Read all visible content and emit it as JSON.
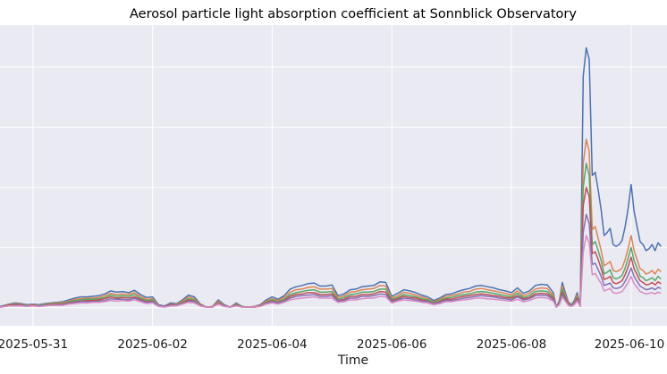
{
  "chart_data": {
    "type": "line",
    "title": "Aerosol particle light absorption coefficient at Sonnblick Observatory",
    "xlabel": "Time",
    "ylabel": "",
    "x_ticks": [
      "2025-05-31",
      "2025-06-02",
      "2025-06-04",
      "2025-06-06",
      "2025-06-08",
      "2025-06-10"
    ],
    "xlim_days": [
      -0.55,
      10.6
    ],
    "ylim": [
      -0.3,
      4.7
    ],
    "y_gridlines": [
      0,
      1,
      2,
      3,
      4
    ],
    "grid": true,
    "background": "#eaeaf2",
    "x_time": [
      -0.55,
      -0.4,
      -0.3,
      -0.2,
      -0.1,
      0,
      0.1,
      0.2,
      0.3,
      0.4,
      0.5,
      0.6,
      0.7,
      0.8,
      0.9,
      1,
      1.1,
      1.2,
      1.3,
      1.4,
      1.5,
      1.6,
      1.7,
      1.8,
      1.9,
      2,
      2.1,
      2.2,
      2.3,
      2.4,
      2.5,
      2.6,
      2.7,
      2.8,
      2.9,
      3,
      3.1,
      3.2,
      3.3,
      3.4,
      3.5,
      3.6,
      3.7,
      3.8,
      3.9,
      4,
      4.1,
      4.2,
      4.3,
      4.4,
      4.5,
      4.6,
      4.7,
      4.8,
      4.9,
      5,
      5.1,
      5.2,
      5.3,
      5.4,
      5.5,
      5.6,
      5.7,
      5.8,
      5.9,
      6,
      6.1,
      6.2,
      6.3,
      6.4,
      6.5,
      6.6,
      6.7,
      6.8,
      6.9,
      7,
      7.1,
      7.2,
      7.3,
      7.4,
      7.5,
      7.6,
      7.7,
      7.8,
      7.9,
      8,
      8.1,
      8.2,
      8.3,
      8.4,
      8.5,
      8.6,
      8.7,
      8.75,
      8.8,
      8.85,
      8.9,
      8.95,
      9,
      9.05,
      9.1,
      9.15,
      9.2,
      9.25,
      9.3,
      9.35,
      9.4,
      9.45,
      9.5,
      9.55,
      9.6,
      9.65,
      9.7,
      9.75,
      9.8,
      9.85,
      9.9,
      9.95,
      10,
      10.05,
      10.1,
      10.15,
      10.2,
      10.25,
      10.3,
      10.35,
      10.4,
      10.45,
      10.5,
      10.55,
      10.6
    ],
    "series": [
      {
        "color": "#4c72b0",
        "values": [
          0.02,
          0.06,
          0.08,
          0.07,
          0.05,
          0.06,
          0.05,
          0.07,
          0.08,
          0.09,
          0.1,
          0.13,
          0.16,
          0.18,
          0.18,
          0.19,
          0.2,
          0.23,
          0.28,
          0.26,
          0.27,
          0.25,
          0.29,
          0.22,
          0.17,
          0.18,
          0.05,
          0.03,
          0.08,
          0.07,
          0.13,
          0.21,
          0.18,
          0.06,
          0.01,
          0.02,
          0.13,
          0.05,
          0.01,
          0.08,
          0.02,
          0.01,
          0.02,
          0.05,
          0.13,
          0.18,
          0.14,
          0.2,
          0.31,
          0.35,
          0.37,
          0.4,
          0.41,
          0.36,
          0.36,
          0.38,
          0.2,
          0.23,
          0.3,
          0.31,
          0.35,
          0.36,
          0.37,
          0.43,
          0.42,
          0.19,
          0.24,
          0.3,
          0.28,
          0.25,
          0.21,
          0.18,
          0.12,
          0.16,
          0.22,
          0.23,
          0.27,
          0.3,
          0.32,
          0.36,
          0.37,
          0.35,
          0.33,
          0.3,
          0.28,
          0.25,
          0.33,
          0.24,
          0.28,
          0.37,
          0.39,
          0.38,
          0.25,
          0.01,
          0.12,
          0.42,
          0.25,
          0.1,
          0.05,
          0.12,
          0.25,
          0.05,
          3.85,
          4.32,
          4.13,
          2.2,
          2.25,
          1.95,
          1.62,
          1.2,
          1.25,
          1.32,
          1.05,
          1.02,
          1.05,
          1.12,
          1.35,
          1.65,
          2.05,
          1.6,
          1.35,
          1.1,
          1.05,
          0.95,
          0.98,
          1.05,
          0.95,
          1.08,
          1.02
        ]
      },
      {
        "color": "#dd8452",
        "values": [
          0.01,
          0.05,
          0.07,
          0.06,
          0.04,
          0.05,
          0.04,
          0.06,
          0.07,
          0.08,
          0.09,
          0.11,
          0.14,
          0.15,
          0.16,
          0.16,
          0.17,
          0.2,
          0.24,
          0.22,
          0.23,
          0.22,
          0.25,
          0.19,
          0.14,
          0.15,
          0.04,
          0.02,
          0.06,
          0.06,
          0.11,
          0.18,
          0.15,
          0.05,
          0.01,
          0.02,
          0.11,
          0.04,
          0.01,
          0.07,
          0.02,
          0.01,
          0.02,
          0.04,
          0.11,
          0.15,
          0.12,
          0.17,
          0.26,
          0.3,
          0.31,
          0.34,
          0.35,
          0.31,
          0.31,
          0.32,
          0.17,
          0.2,
          0.26,
          0.27,
          0.3,
          0.31,
          0.32,
          0.37,
          0.36,
          0.16,
          0.2,
          0.26,
          0.24,
          0.21,
          0.18,
          0.15,
          0.1,
          0.14,
          0.19,
          0.2,
          0.23,
          0.26,
          0.27,
          0.31,
          0.32,
          0.3,
          0.28,
          0.26,
          0.24,
          0.21,
          0.28,
          0.2,
          0.24,
          0.31,
          0.33,
          0.32,
          0.21,
          0.01,
          0.1,
          0.36,
          0.21,
          0.09,
          0.04,
          0.1,
          0.21,
          0.04,
          2.4,
          2.8,
          2.6,
          1.3,
          1.35,
          1.15,
          0.95,
          0.7,
          0.73,
          0.77,
          0.62,
          0.6,
          0.62,
          0.66,
          0.8,
          0.98,
          1.2,
          0.95,
          0.8,
          0.65,
          0.62,
          0.56,
          0.58,
          0.62,
          0.56,
          0.64,
          0.6
        ]
      },
      {
        "color": "#55a868",
        "values": [
          0.01,
          0.04,
          0.06,
          0.05,
          0.04,
          0.04,
          0.04,
          0.05,
          0.06,
          0.07,
          0.07,
          0.1,
          0.12,
          0.13,
          0.14,
          0.14,
          0.15,
          0.17,
          0.21,
          0.19,
          0.2,
          0.19,
          0.22,
          0.16,
          0.12,
          0.13,
          0.03,
          0.02,
          0.05,
          0.05,
          0.09,
          0.15,
          0.13,
          0.04,
          0.01,
          0.01,
          0.09,
          0.03,
          0.01,
          0.06,
          0.02,
          0.01,
          0.01,
          0.03,
          0.09,
          0.13,
          0.1,
          0.14,
          0.22,
          0.25,
          0.27,
          0.29,
          0.3,
          0.26,
          0.26,
          0.27,
          0.14,
          0.17,
          0.22,
          0.23,
          0.26,
          0.26,
          0.27,
          0.31,
          0.31,
          0.14,
          0.17,
          0.22,
          0.2,
          0.18,
          0.15,
          0.13,
          0.09,
          0.12,
          0.16,
          0.17,
          0.2,
          0.22,
          0.23,
          0.26,
          0.27,
          0.26,
          0.24,
          0.22,
          0.2,
          0.18,
          0.24,
          0.17,
          0.2,
          0.27,
          0.28,
          0.27,
          0.18,
          0.01,
          0.09,
          0.31,
          0.18,
          0.07,
          0.04,
          0.09,
          0.18,
          0.04,
          2.0,
          2.4,
          2.2,
          1.05,
          1.1,
          0.95,
          0.78,
          0.56,
          0.59,
          0.63,
          0.5,
          0.48,
          0.5,
          0.54,
          0.66,
          0.82,
          1.0,
          0.78,
          0.66,
          0.53,
          0.5,
          0.45,
          0.47,
          0.5,
          0.45,
          0.52,
          0.48
        ]
      },
      {
        "color": "#c44e52",
        "values": [
          0.01,
          0.04,
          0.05,
          0.05,
          0.03,
          0.04,
          0.03,
          0.04,
          0.05,
          0.06,
          0.06,
          0.08,
          0.1,
          0.11,
          0.12,
          0.12,
          0.13,
          0.15,
          0.18,
          0.16,
          0.17,
          0.16,
          0.18,
          0.14,
          0.1,
          0.11,
          0.03,
          0.02,
          0.05,
          0.04,
          0.08,
          0.13,
          0.11,
          0.04,
          0.01,
          0.01,
          0.08,
          0.03,
          0.01,
          0.05,
          0.01,
          0.01,
          0.01,
          0.03,
          0.08,
          0.11,
          0.09,
          0.12,
          0.19,
          0.22,
          0.23,
          0.25,
          0.25,
          0.22,
          0.22,
          0.23,
          0.12,
          0.14,
          0.19,
          0.19,
          0.22,
          0.22,
          0.23,
          0.27,
          0.26,
          0.12,
          0.15,
          0.19,
          0.17,
          0.16,
          0.13,
          0.11,
          0.07,
          0.1,
          0.14,
          0.14,
          0.17,
          0.19,
          0.2,
          0.22,
          0.23,
          0.22,
          0.2,
          0.19,
          0.17,
          0.16,
          0.2,
          0.15,
          0.17,
          0.23,
          0.24,
          0.23,
          0.16,
          0.01,
          0.07,
          0.26,
          0.16,
          0.06,
          0.03,
          0.07,
          0.16,
          0.03,
          1.7,
          2.0,
          1.85,
          0.9,
          0.93,
          0.8,
          0.65,
          0.47,
          0.49,
          0.52,
          0.42,
          0.4,
          0.42,
          0.45,
          0.55,
          0.68,
          0.84,
          0.65,
          0.55,
          0.45,
          0.42,
          0.38,
          0.39,
          0.42,
          0.38,
          0.43,
          0.4
        ]
      },
      {
        "color": "#8172b3",
        "values": [
          0.01,
          0.03,
          0.04,
          0.04,
          0.03,
          0.03,
          0.03,
          0.04,
          0.04,
          0.05,
          0.05,
          0.07,
          0.09,
          0.1,
          0.1,
          0.1,
          0.11,
          0.12,
          0.15,
          0.14,
          0.14,
          0.13,
          0.16,
          0.12,
          0.09,
          0.1,
          0.03,
          0.02,
          0.04,
          0.04,
          0.07,
          0.11,
          0.1,
          0.03,
          0.01,
          0.01,
          0.07,
          0.03,
          0.01,
          0.04,
          0.01,
          0.01,
          0.01,
          0.03,
          0.07,
          0.1,
          0.08,
          0.11,
          0.16,
          0.19,
          0.2,
          0.21,
          0.22,
          0.19,
          0.19,
          0.2,
          0.11,
          0.12,
          0.16,
          0.16,
          0.19,
          0.19,
          0.2,
          0.23,
          0.22,
          0.1,
          0.13,
          0.16,
          0.15,
          0.13,
          0.11,
          0.1,
          0.06,
          0.09,
          0.12,
          0.12,
          0.14,
          0.16,
          0.17,
          0.19,
          0.2,
          0.19,
          0.18,
          0.16,
          0.15,
          0.13,
          0.18,
          0.13,
          0.15,
          0.2,
          0.21,
          0.2,
          0.13,
          0.01,
          0.06,
          0.22,
          0.13,
          0.05,
          0.03,
          0.06,
          0.13,
          0.03,
          1.25,
          1.55,
          1.4,
          0.72,
          0.74,
          0.63,
          0.52,
          0.37,
          0.39,
          0.41,
          0.33,
          0.32,
          0.33,
          0.36,
          0.44,
          0.54,
          0.66,
          0.52,
          0.44,
          0.36,
          0.33,
          0.3,
          0.31,
          0.33,
          0.3,
          0.34,
          0.32
        ]
      },
      {
        "color": "#da8bc3",
        "values": [
          0.01,
          0.03,
          0.03,
          0.03,
          0.02,
          0.03,
          0.02,
          0.03,
          0.04,
          0.04,
          0.04,
          0.06,
          0.07,
          0.08,
          0.08,
          0.09,
          0.09,
          0.1,
          0.12,
          0.11,
          0.12,
          0.11,
          0.13,
          0.1,
          0.07,
          0.08,
          0.02,
          0.01,
          0.03,
          0.03,
          0.06,
          0.09,
          0.08,
          0.03,
          0.01,
          0.01,
          0.06,
          0.02,
          0.01,
          0.03,
          0.01,
          0.01,
          0.01,
          0.02,
          0.06,
          0.08,
          0.06,
          0.09,
          0.13,
          0.15,
          0.16,
          0.17,
          0.18,
          0.16,
          0.16,
          0.16,
          0.09,
          0.1,
          0.13,
          0.13,
          0.15,
          0.16,
          0.16,
          0.19,
          0.18,
          0.08,
          0.11,
          0.13,
          0.12,
          0.11,
          0.09,
          0.08,
          0.05,
          0.07,
          0.1,
          0.1,
          0.12,
          0.13,
          0.14,
          0.16,
          0.16,
          0.15,
          0.14,
          0.13,
          0.12,
          0.11,
          0.14,
          0.1,
          0.12,
          0.16,
          0.17,
          0.16,
          0.11,
          0.01,
          0.05,
          0.18,
          0.11,
          0.04,
          0.02,
          0.05,
          0.11,
          0.02,
          0.92,
          1.2,
          1.08,
          0.55,
          0.57,
          0.48,
          0.4,
          0.28,
          0.3,
          0.32,
          0.25,
          0.24,
          0.25,
          0.27,
          0.34,
          0.42,
          0.52,
          0.4,
          0.34,
          0.27,
          0.25,
          0.23,
          0.24,
          0.25,
          0.23,
          0.26,
          0.24
        ]
      }
    ]
  }
}
